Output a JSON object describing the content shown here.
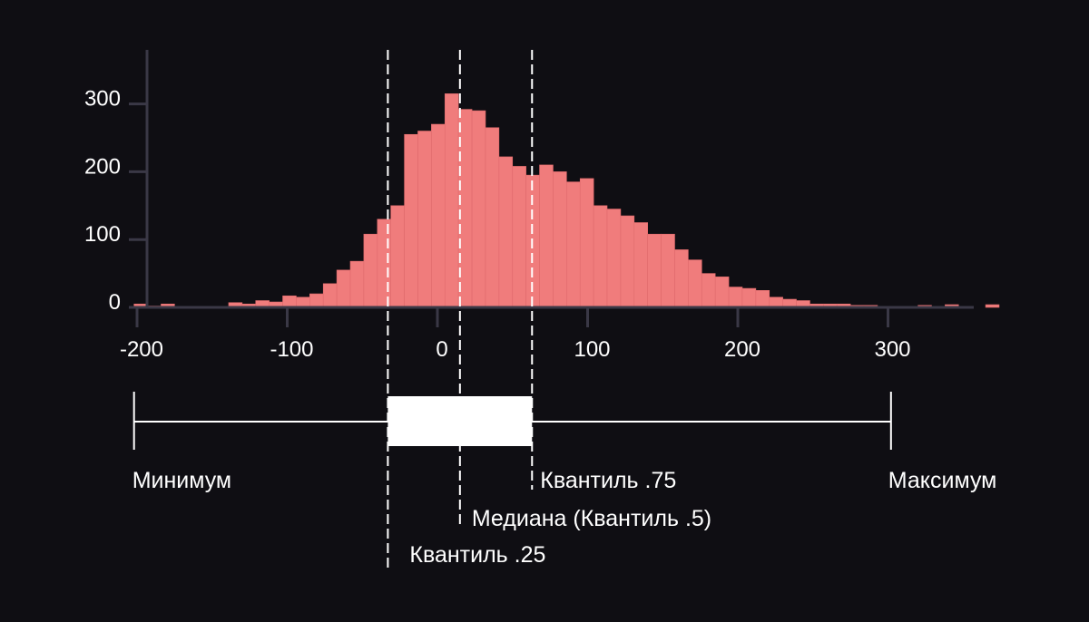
{
  "chart_data": {
    "type": "bar",
    "title": "",
    "xlabel": "",
    "ylabel": "",
    "xlim": [
      -210,
      370
    ],
    "ylim": [
      0,
      380
    ],
    "grid": false,
    "bin_width": 9,
    "bin_start": -202,
    "counts": [
      5,
      2,
      5,
      0,
      0,
      0,
      0,
      7,
      5,
      10,
      8,
      17,
      15,
      20,
      35,
      55,
      68,
      108,
      130,
      150,
      255,
      260,
      270,
      315,
      292,
      290,
      265,
      222,
      208,
      195,
      210,
      200,
      185,
      190,
      150,
      145,
      135,
      125,
      108,
      108,
      85,
      70,
      50,
      45,
      30,
      28,
      25,
      15,
      12,
      10,
      5,
      5,
      5,
      3,
      3,
      0,
      0,
      0,
      3,
      0,
      4,
      0,
      0,
      4
    ],
    "colors": {
      "background": "#0f0e13",
      "bar": "#f07c7c",
      "bar_stroke": "#e06a6c",
      "axis": "#3a3846",
      "line": "#ffffff"
    },
    "x_ticks": [
      {
        "value": -200,
        "label": "-200"
      },
      {
        "value": -100,
        "label": "-100"
      },
      {
        "value": 0,
        "label": "0"
      },
      {
        "value": 100,
        "label": "100"
      },
      {
        "value": 200,
        "label": "200"
      },
      {
        "value": 300,
        "label": "300"
      }
    ],
    "y_ticks": [
      {
        "value": 0,
        "label": "0"
      },
      {
        "value": 100,
        "label": "100"
      },
      {
        "value": 200,
        "label": "200"
      },
      {
        "value": 300,
        "label": "300"
      }
    ],
    "boxplot": {
      "min": -202,
      "q1": -33,
      "median": 15,
      "q3": 63,
      "max": 302
    },
    "annotations": [
      {
        "key": "min",
        "label": "Минимум"
      },
      {
        "key": "q3",
        "label": "Квантиль .75"
      },
      {
        "key": "max",
        "label": "Максимум"
      },
      {
        "key": "median",
        "label": "Медиана (Квантиль .5)"
      },
      {
        "key": "q1",
        "label": "Квантиль .25"
      }
    ]
  }
}
